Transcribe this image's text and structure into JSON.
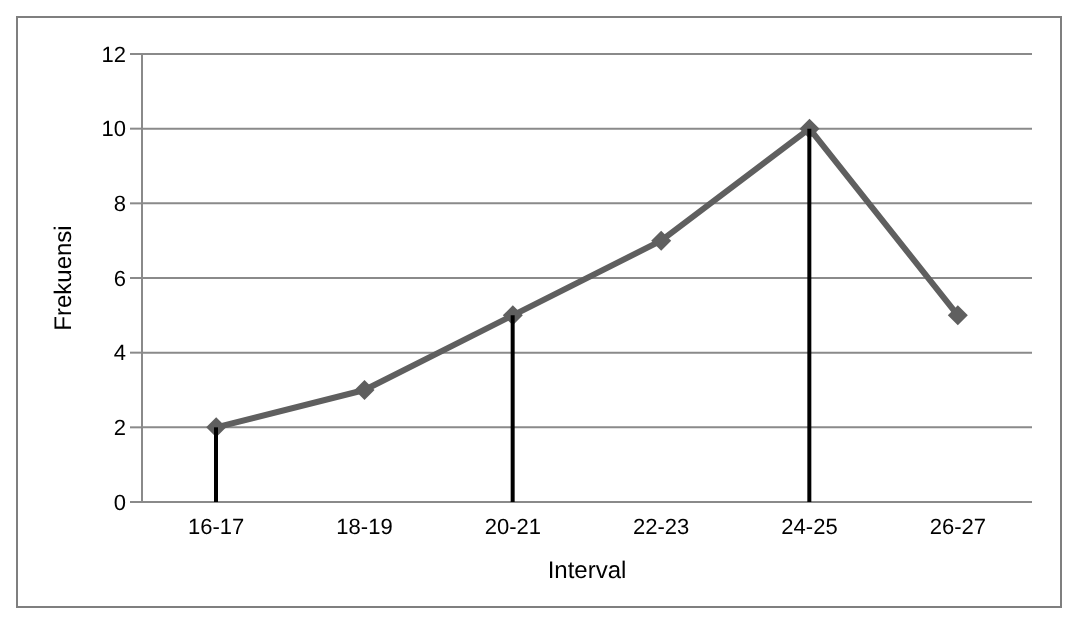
{
  "chart_data": {
    "type": "line",
    "xlabel": "Interval",
    "ylabel": "Frekuensi",
    "categories": [
      "16-17",
      "18-19",
      "20-21",
      "22-23",
      "24-25",
      "26-27"
    ],
    "series": [
      {
        "type": "bar",
        "color": "#000000",
        "values": [
          2,
          null,
          5,
          null,
          10,
          null
        ]
      },
      {
        "color": "#5f5f5f",
        "values": [
          2,
          3,
          5,
          7,
          10,
          5
        ]
      }
    ],
    "ylim": [
      0,
      12
    ],
    "yticks": [
      0,
      2,
      4,
      6,
      8,
      10,
      12
    ],
    "grid": "y",
    "marker": "diamond",
    "line_style": "solid",
    "legend": false
  }
}
